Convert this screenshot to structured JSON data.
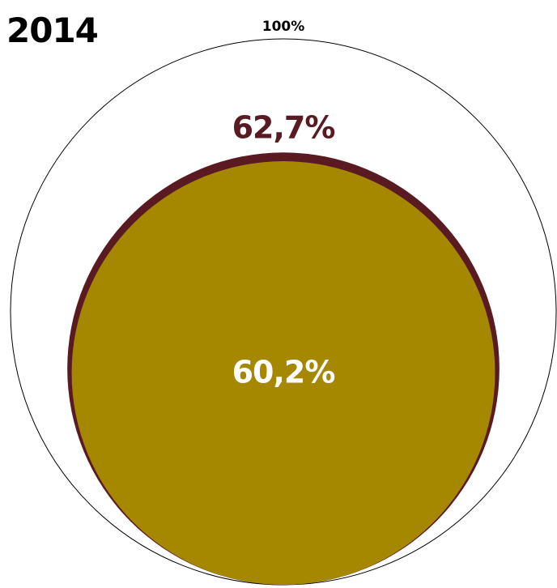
{
  "chart_data": {
    "type": "nested-circles",
    "title": "2014",
    "series": [
      {
        "label": "100%",
        "value": 100,
        "color": "#ffffff",
        "stroke": "#000000"
      },
      {
        "label": "62,7%",
        "value": 62.7,
        "color": "#5a1a22"
      },
      {
        "label": "60,2%",
        "value": 60.2,
        "color": "#a68700"
      }
    ],
    "colors": {
      "outer_label": "#000000",
      "mid_label": "#5a1a22",
      "inner_label": "#ffffff",
      "title": "#000000"
    }
  }
}
